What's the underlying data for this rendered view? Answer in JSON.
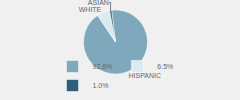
{
  "chart_data": {
    "type": "pie",
    "categories": [
      "HISPANIC",
      "WHITE",
      "ASIAN"
    ],
    "values": [
      92.6,
      6.5,
      1.0
    ],
    "value_labels": [
      "92.6%",
      "6.5%",
      "1.0%"
    ],
    "colors": [
      "#7fa8bc",
      "#dce9f0",
      "#2e5f7a"
    ],
    "legend": "bottom"
  }
}
